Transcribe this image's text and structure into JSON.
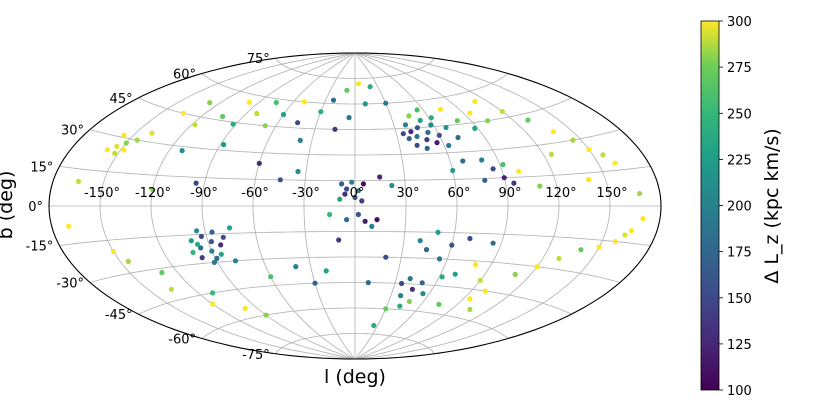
{
  "chart_data": {
    "type": "scatter",
    "projection": "aitoff",
    "xlabel": "l (deg)",
    "ylabel": "b (deg)",
    "x_tick_labels": [
      "-150°",
      "-120°",
      "-90°",
      "-60°",
      "-30°",
      "0°",
      "30°",
      "60°",
      "90°",
      "120°",
      "150°"
    ],
    "y_tick_labels": [
      "75°",
      "60°",
      "45°",
      "30°",
      "15°",
      "0°",
      "-15°",
      "-30°",
      "-45°",
      "-60°",
      "-75°"
    ],
    "grid": true,
    "colorbar": {
      "label": "Δ L_z (kpc km/s)",
      "colormap": "viridis",
      "range": [
        100,
        300
      ],
      "tick_labels": [
        "300",
        "275",
        "250",
        "225",
        "200",
        "175",
        "150",
        "125",
        "100"
      ]
    },
    "points": [
      {
        "l": -156,
        "b": 31,
        "v": 300
      },
      {
        "l": -154,
        "b": 26,
        "v": 295
      },
      {
        "l": -150,
        "b": 28,
        "v": 280
      },
      {
        "l": -152,
        "b": 23,
        "v": 290
      },
      {
        "l": -148,
        "b": 25,
        "v": 300
      },
      {
        "l": -145,
        "b": 30,
        "v": 285
      },
      {
        "l": -158,
        "b": 24,
        "v": 300
      },
      {
        "l": -140,
        "b": 34,
        "v": 295
      },
      {
        "l": -135,
        "b": 45,
        "v": 300
      },
      {
        "l": -128,
        "b": 52,
        "v": 280
      },
      {
        "l": -118,
        "b": 41,
        "v": 290
      },
      {
        "l": -112,
        "b": 28,
        "v": 210
      },
      {
        "l": -105,
        "b": 47,
        "v": 270
      },
      {
        "l": -98,
        "b": 56,
        "v": 300
      },
      {
        "l": -92,
        "b": 44,
        "v": 240
      },
      {
        "l": -88,
        "b": 33,
        "v": 220
      },
      {
        "l": -82,
        "b": 51,
        "v": 290
      },
      {
        "l": -75,
        "b": 58,
        "v": 260
      },
      {
        "l": -68,
        "b": 45,
        "v": 280
      },
      {
        "l": -60,
        "b": 52,
        "v": 230
      },
      {
        "l": -50,
        "b": 60,
        "v": 300
      },
      {
        "l": -45,
        "b": 48,
        "v": 150
      },
      {
        "l": -38,
        "b": 38,
        "v": 200
      },
      {
        "l": -30,
        "b": 55,
        "v": 240
      },
      {
        "l": -22,
        "b": 62,
        "v": 180
      },
      {
        "l": -15,
        "b": 45,
        "v": 140
      },
      {
        "l": -10,
        "b": 68,
        "v": 270
      },
      {
        "l": -5,
        "b": 52,
        "v": 190
      },
      {
        "l": 5,
        "b": 72,
        "v": 300
      },
      {
        "l": 10,
        "b": 60,
        "v": 220
      },
      {
        "l": -60,
        "b": 24,
        "v": 130
      },
      {
        "l": -45,
        "b": 15,
        "v": 160
      },
      {
        "l": -35,
        "b": 20,
        "v": 210
      },
      {
        "l": -95,
        "b": 12,
        "v": 150
      },
      {
        "l": -120,
        "b": 8,
        "v": 280
      },
      {
        "l": -8,
        "b": 13,
        "v": 170
      },
      {
        "l": -5,
        "b": 10,
        "v": 150
      },
      {
        "l": -2,
        "b": 14,
        "v": 200
      },
      {
        "l": -6,
        "b": 7,
        "v": 130
      },
      {
        "l": 2,
        "b": 9,
        "v": 190
      },
      {
        "l": 5,
        "b": 13,
        "v": 110
      },
      {
        "l": -9,
        "b": 4,
        "v": 230
      },
      {
        "l": 0,
        "b": 5,
        "v": 160
      },
      {
        "l": 4,
        "b": 3,
        "v": 140
      },
      {
        "l": 15,
        "b": 17,
        "v": 125
      },
      {
        "l": 22,
        "b": 12,
        "v": 210
      },
      {
        "l": 35,
        "b": 42,
        "v": 150
      },
      {
        "l": 38,
        "b": 39,
        "v": 170
      },
      {
        "l": 41,
        "b": 43,
        "v": 130
      },
      {
        "l": 44,
        "b": 40,
        "v": 190
      },
      {
        "l": 47,
        "b": 45,
        "v": 160
      },
      {
        "l": 50,
        "b": 38,
        "v": 140
      },
      {
        "l": 53,
        "b": 42,
        "v": 180
      },
      {
        "l": 56,
        "b": 36,
        "v": 120
      },
      {
        "l": 58,
        "b": 46,
        "v": 210
      },
      {
        "l": 42,
        "b": 35,
        "v": 150
      },
      {
        "l": 48,
        "b": 33,
        "v": 170
      },
      {
        "l": 52,
        "b": 49,
        "v": 230
      },
      {
        "l": 60,
        "b": 40,
        "v": 160
      },
      {
        "l": 63,
        "b": 34,
        "v": 190
      },
      {
        "l": 39,
        "b": 47,
        "v": 200
      },
      {
        "l": 45,
        "b": 52,
        "v": 280
      },
      {
        "l": 55,
        "b": 55,
        "v": 260
      },
      {
        "l": 62,
        "b": 50,
        "v": 240
      },
      {
        "l": 68,
        "b": 44,
        "v": 220
      },
      {
        "l": 72,
        "b": 38,
        "v": 180
      },
      {
        "l": 75,
        "b": 54,
        "v": 300
      },
      {
        "l": 80,
        "b": 47,
        "v": 270
      },
      {
        "l": 88,
        "b": 42,
        "v": 230
      },
      {
        "l": 95,
        "b": 50,
        "v": 300
      },
      {
        "l": 102,
        "b": 45,
        "v": 280
      },
      {
        "l": 110,
        "b": 55,
        "v": 300
      },
      {
        "l": 120,
        "b": 48,
        "v": 290
      },
      {
        "l": 130,
        "b": 42,
        "v": 270
      },
      {
        "l": 138,
        "b": 35,
        "v": 300
      },
      {
        "l": 145,
        "b": 30,
        "v": 285
      },
      {
        "l": 150,
        "b": 25,
        "v": 300
      },
      {
        "l": 156,
        "b": 22,
        "v": 290
      },
      {
        "l": 160,
        "b": 18,
        "v": 300
      },
      {
        "l": 80,
        "b": 25,
        "v": 200
      },
      {
        "l": 85,
        "b": 20,
        "v": 150
      },
      {
        "l": 90,
        "b": 15,
        "v": 120
      },
      {
        "l": 78,
        "b": 14,
        "v": 170
      },
      {
        "l": 92,
        "b": 22,
        "v": 260
      },
      {
        "l": 95,
        "b": 12,
        "v": 140
      },
      {
        "l": 100,
        "b": 18,
        "v": 300
      },
      {
        "l": 110,
        "b": 10,
        "v": 280
      },
      {
        "l": 125,
        "b": 25,
        "v": 290
      },
      {
        "l": 140,
        "b": 12,
        "v": 300
      },
      {
        "l": 168,
        "b": 5,
        "v": 285
      },
      {
        "l": 60,
        "b": 20,
        "v": 230
      },
      {
        "l": 68,
        "b": 25,
        "v": 180
      },
      {
        "l": 30,
        "b": 60,
        "v": 190
      },
      {
        "l": 20,
        "b": 70,
        "v": 240
      },
      {
        "l": -100,
        "b": -18,
        "v": 220
      },
      {
        "l": -96,
        "b": -22,
        "v": 180
      },
      {
        "l": -93,
        "b": -16,
        "v": 150
      },
      {
        "l": -90,
        "b": -24,
        "v": 200
      },
      {
        "l": -88,
        "b": -19,
        "v": 160
      },
      {
        "l": -85,
        "b": -26,
        "v": 230
      },
      {
        "l": -98,
        "b": -27,
        "v": 140
      },
      {
        "l": -92,
        "b": -30,
        "v": 190
      },
      {
        "l": -86,
        "b": -14,
        "v": 170
      },
      {
        "l": -102,
        "b": -24,
        "v": 250
      },
      {
        "l": -83,
        "b": -21,
        "v": 130
      },
      {
        "l": -95,
        "b": -13,
        "v": 210
      },
      {
        "l": -89,
        "b": -28,
        "v": 175
      },
      {
        "l": -80,
        "b": -17,
        "v": 155
      },
      {
        "l": -97,
        "b": -20,
        "v": 240
      },
      {
        "l": -75,
        "b": -12,
        "v": 230
      },
      {
        "l": -78,
        "b": -30,
        "v": 200
      },
      {
        "l": -150,
        "b": -20,
        "v": 300
      },
      {
        "l": -145,
        "b": -25,
        "v": 285
      },
      {
        "l": -135,
        "b": -40,
        "v": 290
      },
      {
        "l": -120,
        "b": -50,
        "v": 300
      },
      {
        "l": -110,
        "b": -45,
        "v": 250
      },
      {
        "l": -100,
        "b": -55,
        "v": 300
      },
      {
        "l": -90,
        "b": -60,
        "v": 280
      },
      {
        "l": -130,
        "b": -32,
        "v": 270
      },
      {
        "l": -60,
        "b": -40,
        "v": 260
      },
      {
        "l": -40,
        "b": -35,
        "v": 200
      },
      {
        "l": -30,
        "b": -45,
        "v": 170
      },
      {
        "l": -20,
        "b": -38,
        "v": 230
      },
      {
        "l": -10,
        "b": -20,
        "v": 140
      },
      {
        "l": -5,
        "b": -8,
        "v": 180
      },
      {
        "l": 2,
        "b": -5,
        "v": 160
      },
      {
        "l": 6,
        "b": -9,
        "v": 120
      },
      {
        "l": 10,
        "b": -12,
        "v": 200
      },
      {
        "l": 13,
        "b": -8,
        "v": 110
      },
      {
        "l": -15,
        "b": -5,
        "v": 250
      },
      {
        "l": 20,
        "b": -30,
        "v": 150
      },
      {
        "l": 10,
        "b": -45,
        "v": 180
      },
      {
        "l": 40,
        "b": -20,
        "v": 200
      },
      {
        "l": 45,
        "b": -25,
        "v": 170
      },
      {
        "l": 50,
        "b": -15,
        "v": 220
      },
      {
        "l": 55,
        "b": -30,
        "v": 190
      },
      {
        "l": 60,
        "b": -22,
        "v": 160
      },
      {
        "l": 62,
        "b": -40,
        "v": 240
      },
      {
        "l": 35,
        "b": -45,
        "v": 150
      },
      {
        "l": 40,
        "b": -42,
        "v": 190
      },
      {
        "l": 45,
        "b": -48,
        "v": 130
      },
      {
        "l": 50,
        "b": -44,
        "v": 170
      },
      {
        "l": 55,
        "b": -50,
        "v": 210
      },
      {
        "l": 48,
        "b": -55,
        "v": 280
      },
      {
        "l": 38,
        "b": -52,
        "v": 200
      },
      {
        "l": 42,
        "b": -58,
        "v": 240
      },
      {
        "l": 30,
        "b": -60,
        "v": 270
      },
      {
        "l": 70,
        "b": -38,
        "v": 230
      },
      {
        "l": 80,
        "b": -32,
        "v": 300
      },
      {
        "l": 90,
        "b": -40,
        "v": 290
      },
      {
        "l": 100,
        "b": -45,
        "v": 300
      },
      {
        "l": 110,
        "b": -35,
        "v": 280
      },
      {
        "l": 120,
        "b": -30,
        "v": 300
      },
      {
        "l": 130,
        "b": -25,
        "v": 290
      },
      {
        "l": 140,
        "b": -20,
        "v": 270
      },
      {
        "l": 150,
        "b": -18,
        "v": 300
      },
      {
        "l": 158,
        "b": -15,
        "v": 300
      },
      {
        "l": 162,
        "b": -12,
        "v": 295
      },
      {
        "l": 165,
        "b": -10,
        "v": 300
      },
      {
        "l": 95,
        "b": -50,
        "v": 300
      },
      {
        "l": 105,
        "b": -55,
        "v": 285
      },
      {
        "l": 75,
        "b": -55,
        "v": 270
      },
      {
        "l": 85,
        "b": -20,
        "v": 180
      },
      {
        "l": 70,
        "b": -18,
        "v": 150
      },
      {
        "l": 25,
        "b": -70,
        "v": 240
      },
      {
        "l": -170,
        "b": -8,
        "v": 300
      },
      {
        "l": -165,
        "b": 10,
        "v": 290
      },
      {
        "l": 170,
        "b": -5,
        "v": 300
      }
    ]
  }
}
